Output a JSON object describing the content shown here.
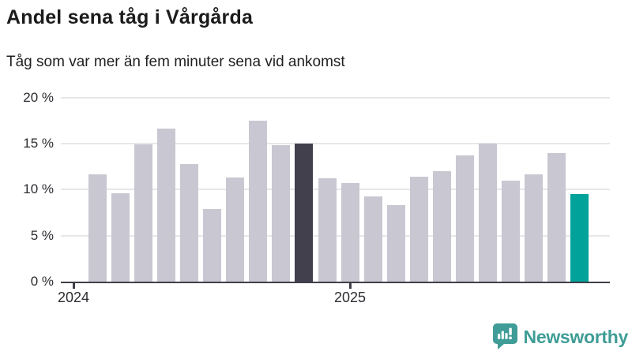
{
  "header": {
    "title": "Andel sena tåg i Vårgårda",
    "subtitle": "Tåg som var mer än fem minuter sena vid ankomst"
  },
  "chart_data": {
    "type": "bar",
    "title": "Andel sena tåg i Vårgårda",
    "subtitle": "Tåg som var mer än fem minuter sena vid ankomst",
    "unit": "%",
    "ylim": [
      0,
      20
    ],
    "grid": true,
    "legend": false,
    "y_ticks": [
      {
        "value": 0,
        "label": "0 %"
      },
      {
        "value": 5,
        "label": "5 %"
      },
      {
        "value": 10,
        "label": "10 %"
      },
      {
        "value": 15,
        "label": "15 %"
      },
      {
        "value": 20,
        "label": "20 %"
      }
    ],
    "x_ticks": [
      {
        "label": "2024",
        "x": 93
      },
      {
        "label": "2025",
        "x": 443
      }
    ],
    "bars": [
      {
        "value": 11.7,
        "color": "light"
      },
      {
        "value": 9.6,
        "color": "light"
      },
      {
        "value": 14.9,
        "color": "light"
      },
      {
        "value": 16.6,
        "color": "light"
      },
      {
        "value": 12.8,
        "color": "light"
      },
      {
        "value": 7.9,
        "color": "light"
      },
      {
        "value": 11.3,
        "color": "light"
      },
      {
        "value": 17.5,
        "color": "light"
      },
      {
        "value": 14.8,
        "color": "light"
      },
      {
        "value": 15.0,
        "color": "dark"
      },
      {
        "value": 11.2,
        "color": "light"
      },
      {
        "value": 10.7,
        "color": "light"
      },
      {
        "value": 9.3,
        "color": "light"
      },
      {
        "value": 8.3,
        "color": "light"
      },
      {
        "value": 11.4,
        "color": "light"
      },
      {
        "value": 12.0,
        "color": "light"
      },
      {
        "value": 13.7,
        "color": "light"
      },
      {
        "value": 15.0,
        "color": "light"
      },
      {
        "value": 11.0,
        "color": "light"
      },
      {
        "value": 11.7,
        "color": "light"
      },
      {
        "value": 14.0,
        "color": "light"
      },
      {
        "value": 9.5,
        "color": "teal"
      }
    ],
    "colors": {
      "light": "#c9c7d1",
      "dark": "#42404d",
      "teal": "#00a29a",
      "axis": "#3f3e49",
      "grid": "#e7e6ea"
    },
    "highlighted_bars": {
      "dark_index": 10,
      "teal_index": 22
    }
  },
  "branding": {
    "logo_text": "Newsworthy",
    "color": "#3f9c96"
  }
}
